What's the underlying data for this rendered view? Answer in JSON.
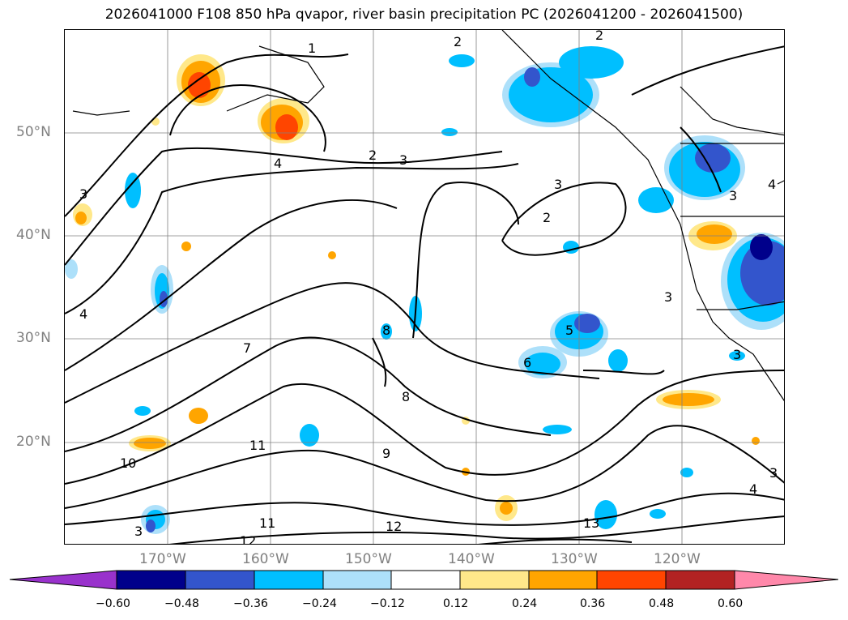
{
  "title": "2026041000 F108 850 hPa qvapor, river basin precipitation PC (2026041200 - 2026041500)",
  "map": {
    "lat_labels": [
      "50°N",
      "40°N",
      "30°N",
      "20°N"
    ],
    "lon_labels": [
      "170°W",
      "160°W",
      "150°W",
      "140°W",
      "130°W",
      "120°W"
    ],
    "contour_labels": [
      "1",
      "2",
      "3",
      "2",
      "3",
      "4",
      "3",
      "2",
      "3",
      "3",
      "4",
      "4",
      "5",
      "6",
      "7",
      "8",
      "8",
      "9",
      "10",
      "11",
      "11",
      "12",
      "12",
      "13",
      "4",
      "3",
      "3",
      "3",
      "2"
    ]
  },
  "colorbar": {
    "ticks": [
      "−0.60",
      "−0.48",
      "−0.36",
      "−0.24",
      "−0.12",
      "0.12",
      "0.24",
      "0.36",
      "0.48",
      "0.60"
    ],
    "colors": [
      "#9932CC",
      "#00008B",
      "#3355CC",
      "#00BFFF",
      "#ADE0FA",
      "#FFFFFF",
      "#FFE88A",
      "#FFA500",
      "#FF4500",
      "#B22222",
      "#FF88AA"
    ]
  },
  "colors": {
    "contour": "#000000",
    "grid": "#808080",
    "coast": "#000000"
  }
}
